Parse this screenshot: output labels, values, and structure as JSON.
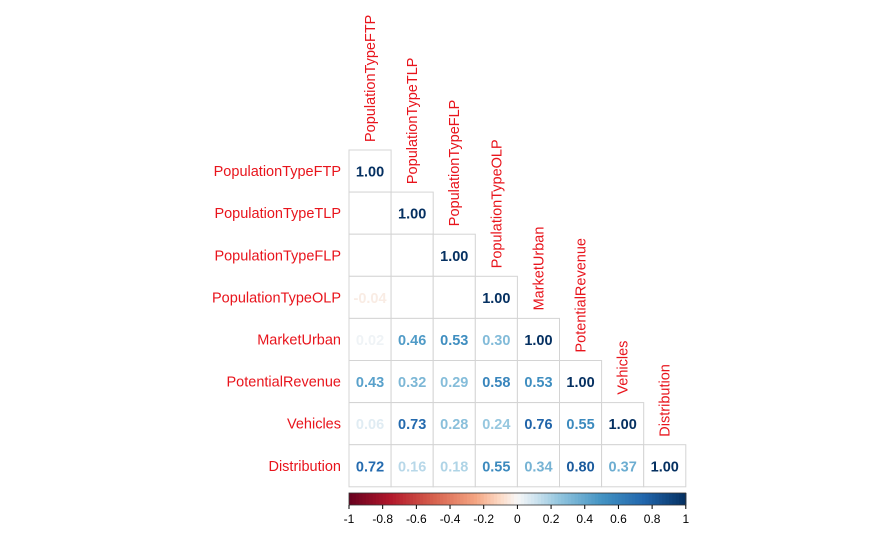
{
  "chart_data": {
    "type": "heatmap",
    "layout": "lower-triangle correlation matrix",
    "variables": [
      "PopulationTypeFTP",
      "PopulationTypeTLP",
      "PopulationTypeFLP",
      "PopulationTypeOLP",
      "MarketUrban",
      "PotentialRevenue",
      "Vehicles",
      "Distribution"
    ],
    "matrix": [
      [
        1.0
      ],
      [
        null,
        1.0
      ],
      [
        null,
        null,
        1.0
      ],
      [
        -0.04,
        null,
        null,
        1.0
      ],
      [
        0.02,
        0.46,
        0.53,
        0.3,
        1.0
      ],
      [
        0.43,
        0.32,
        0.29,
        0.58,
        0.53,
        1.0
      ],
      [
        0.06,
        0.73,
        0.28,
        0.24,
        0.76,
        0.55,
        1.0
      ],
      [
        0.72,
        0.16,
        0.18,
        0.55,
        0.34,
        0.8,
        0.37,
        1.0
      ]
    ],
    "colorbar": {
      "range": [
        -1,
        1
      ],
      "tick_values": [
        -1,
        -0.8,
        -0.6,
        -0.4,
        -0.2,
        0,
        0.2,
        0.4,
        0.6,
        0.8,
        1
      ],
      "tick_labels": [
        "-1",
        "-0.8",
        "-0.6",
        "-0.4",
        "-0.2",
        "0",
        "0.2",
        "0.4",
        "0.6",
        "0.8",
        "1"
      ],
      "placement": "bottom"
    },
    "colors": {
      "label_color": "#e8141c",
      "negative_end": "#67001f",
      "zero": "#f7f7f7",
      "positive_end": "#053061"
    }
  }
}
